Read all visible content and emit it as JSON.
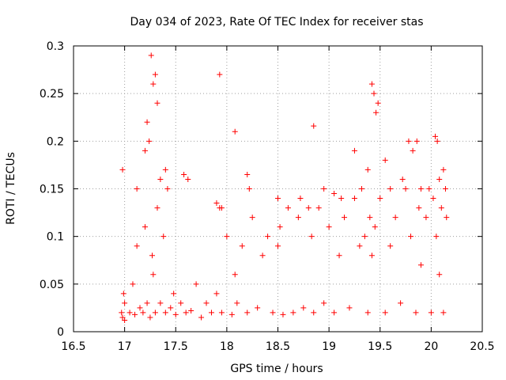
{
  "chart_data": {
    "type": "scatter",
    "title": "Day 034 of 2023, Rate Of TEC Index for receiver stas",
    "xlabel": "GPS time / hours",
    "ylabel": "ROTI / TECUs",
    "xlim": [
      16.5,
      20.5
    ],
    "ylim": [
      0,
      0.3
    ],
    "xticks": [
      "16.5",
      "17",
      "17.5",
      "18",
      "18.5",
      "19",
      "19.5",
      "20",
      "20.5"
    ],
    "yticks": [
      "0",
      "0.05",
      "0.1",
      "0.15",
      "0.2",
      "0.25",
      "0.3"
    ],
    "grid": true,
    "marker": "+",
    "color": "#ff0000",
    "series": [
      {
        "name": "ROTI",
        "x": [
          16.97,
          16.98,
          17.0,
          17.0,
          16.99,
          17.05,
          17.08,
          17.1,
          17.12,
          17.15,
          17.18,
          17.2,
          17.22,
          17.25,
          17.27,
          17.28,
          17.3,
          17.32,
          17.35,
          17.38,
          17.4,
          17.42,
          17.45,
          17.48,
          17.5,
          17.55,
          17.6,
          17.65,
          17.7,
          17.75,
          17.8,
          17.85,
          17.9,
          17.93,
          17.95,
          18.0,
          18.05,
          18.08,
          18.1,
          18.15,
          18.2,
          18.25,
          18.3,
          18.35,
          18.4,
          18.45,
          18.5,
          18.52,
          18.55,
          18.6,
          18.65,
          18.7,
          18.75,
          18.83,
          18.85,
          18.9,
          18.95,
          19.0,
          19.05,
          19.1,
          19.15,
          19.2,
          19.25,
          19.3,
          19.35,
          19.38,
          19.4,
          19.42,
          19.45,
          19.5,
          19.55,
          19.6,
          19.65,
          19.7,
          19.75,
          19.8,
          19.85,
          19.88,
          19.9,
          19.95,
          20.0,
          20.02,
          20.05,
          20.08,
          20.1,
          20.12,
          20.15,
          17.26,
          17.3,
          17.32,
          17.28,
          17.22,
          17.24,
          17.93,
          18.08,
          18.85,
          19.42,
          19.44,
          19.46,
          19.48,
          19.86,
          20.04,
          20.06,
          16.98,
          17.12,
          17.2,
          17.35,
          17.4,
          17.58,
          17.62,
          17.9,
          17.95,
          18.2,
          18.22,
          18.5,
          18.72,
          18.8,
          18.95,
          19.05,
          19.12,
          19.25,
          19.32,
          19.38,
          19.55,
          19.6,
          19.72,
          19.78,
          19.82,
          19.9,
          19.98,
          20.08,
          20.12,
          20.14
        ],
        "y": [
          0.02,
          0.015,
          0.03,
          0.012,
          0.04,
          0.02,
          0.05,
          0.018,
          0.09,
          0.025,
          0.02,
          0.11,
          0.03,
          0.015,
          0.08,
          0.06,
          0.02,
          0.13,
          0.03,
          0.1,
          0.02,
          0.15,
          0.025,
          0.04,
          0.018,
          0.03,
          0.02,
          0.022,
          0.05,
          0.015,
          0.03,
          0.02,
          0.04,
          0.13,
          0.02,
          0.1,
          0.018,
          0.06,
          0.03,
          0.09,
          0.02,
          0.12,
          0.025,
          0.08,
          0.1,
          0.02,
          0.09,
          0.11,
          0.018,
          0.13,
          0.02,
          0.12,
          0.025,
          0.1,
          0.02,
          0.13,
          0.03,
          0.11,
          0.02,
          0.08,
          0.12,
          0.025,
          0.14,
          0.09,
          0.1,
          0.02,
          0.12,
          0.08,
          0.11,
          0.14,
          0.02,
          0.09,
          0.12,
          0.03,
          0.15,
          0.1,
          0.02,
          0.13,
          0.07,
          0.12,
          0.02,
          0.14,
          0.1,
          0.06,
          0.13,
          0.02,
          0.12,
          0.29,
          0.27,
          0.24,
          0.26,
          0.22,
          0.2,
          0.27,
          0.21,
          0.216,
          0.26,
          0.25,
          0.23,
          0.24,
          0.2,
          0.205,
          0.2,
          0.17,
          0.15,
          0.19,
          0.16,
          0.17,
          0.165,
          0.16,
          0.135,
          0.13,
          0.165,
          0.15,
          0.14,
          0.14,
          0.13,
          0.15,
          0.145,
          0.14,
          0.19,
          0.15,
          0.17,
          0.18,
          0.15,
          0.16,
          0.2,
          0.19,
          0.15,
          0.15,
          0.16,
          0.17,
          0.15
        ]
      }
    ]
  }
}
